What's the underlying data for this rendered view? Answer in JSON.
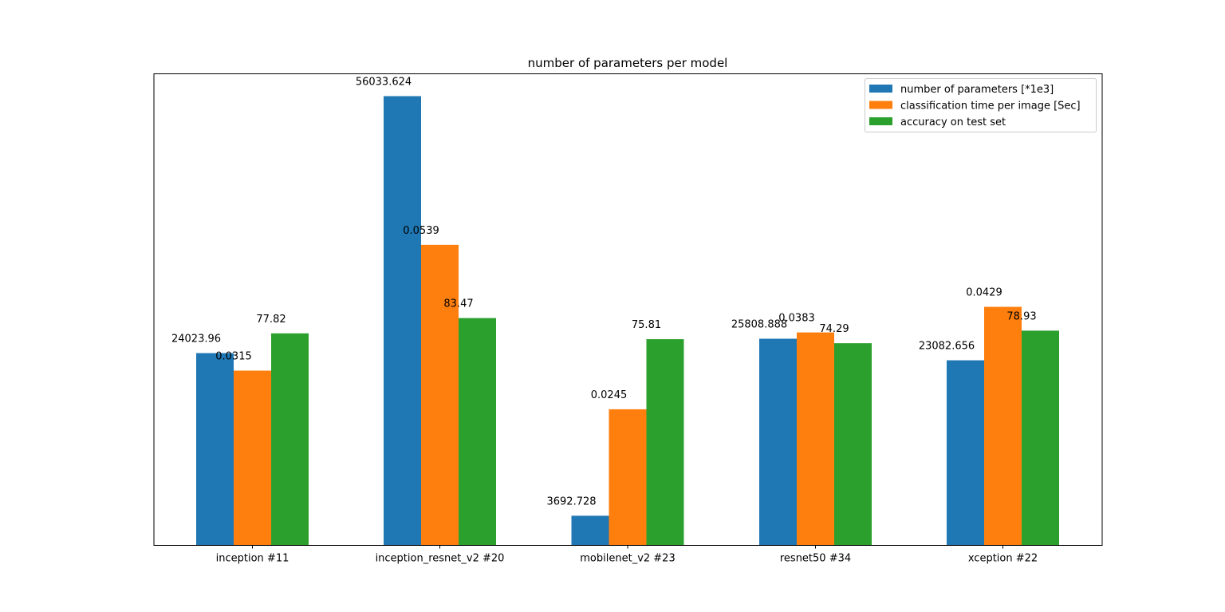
{
  "chart_data": {
    "type": "bar",
    "title": "number of parameters per model",
    "xlabel": "",
    "ylabel": "",
    "categories": [
      "inception #11",
      "inception_resnet_v2 #20",
      "mobilenet_v2 #23",
      "resnet50 #34",
      "xception #22"
    ],
    "series": [
      {
        "name": "number of parameters [*1e3]",
        "color": "#1f77b4",
        "values": [
          24023.96,
          56033.624,
          3692.728,
          25808.888,
          23082.656
        ],
        "labels": [
          "24023.96",
          "56033.624",
          "3692.728",
          "25808.888",
          "23082.656"
        ]
      },
      {
        "name": "classification time per image [Sec]",
        "color": "#ff7f0e",
        "values": [
          0.0315,
          0.0539,
          0.0245,
          0.0383,
          0.0429
        ],
        "labels": [
          "0.0315",
          "0.0539",
          "0.0245",
          "0.0383",
          "0.0429"
        ]
      },
      {
        "name": "accuracy on test set",
        "color": "#2ca02c",
        "values": [
          77.82,
          83.47,
          75.81,
          74.29,
          78.93
        ],
        "labels": [
          "77.82",
          "83.47",
          "75.81",
          "74.29",
          "78.93"
        ]
      }
    ],
    "bar_heights_relative": [
      [
        0.428,
        1.0,
        0.066,
        0.46,
        0.412
      ],
      [
        0.389,
        0.669,
        0.303,
        0.474,
        0.531
      ],
      [
        0.472,
        0.506,
        0.459,
        0.45,
        0.478
      ]
    ],
    "y_axis_visible": false,
    "grid": false,
    "legend_position": "top-right"
  }
}
